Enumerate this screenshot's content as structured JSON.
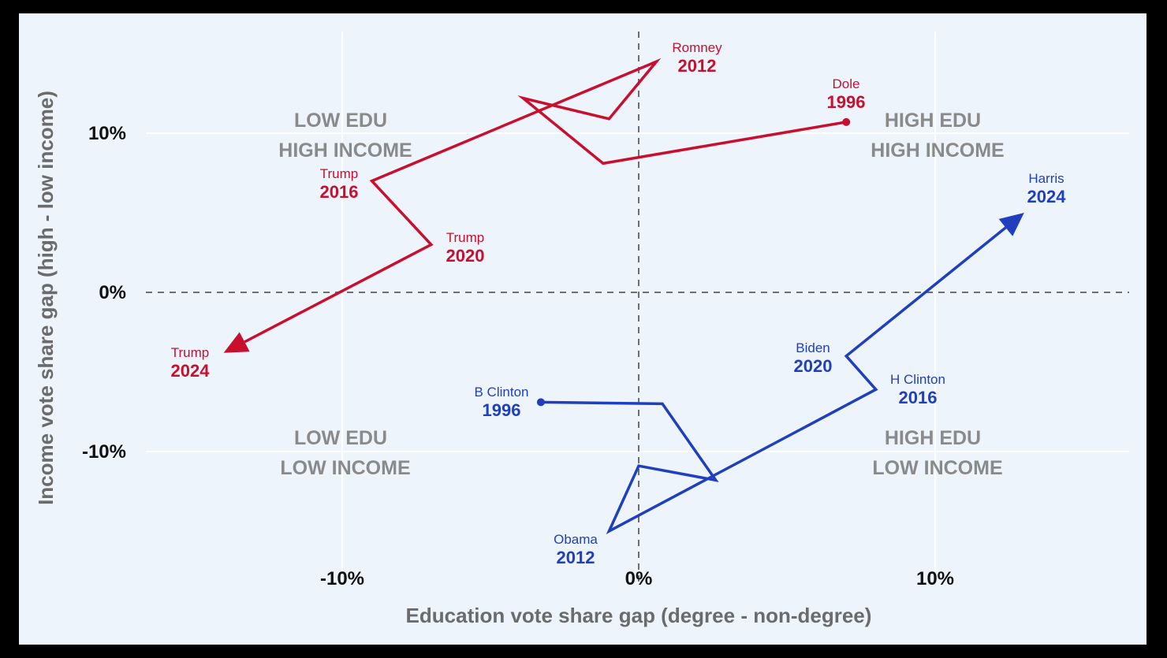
{
  "chart_data": {
    "type": "line",
    "title": "",
    "xlabel": "Education vote share gap (degree - non-degree)",
    "ylabel": "Income vote share gap (high - low income)",
    "xlim": [
      -17,
      17
    ],
    "ylim": [
      -16,
      16
    ],
    "x_ticks": [
      {
        "value": -10,
        "label": "-10%"
      },
      {
        "value": 0,
        "label": "0%"
      },
      {
        "value": 10,
        "label": "10%"
      }
    ],
    "y_ticks": [
      {
        "value": 10,
        "label": "10%"
      },
      {
        "value": 0,
        "label": "0%"
      },
      {
        "value": -10,
        "label": "-10%"
      }
    ],
    "grid": true,
    "zero_lines": "dashed",
    "quadrant_labels": [
      {
        "line1": "LOW EDU",
        "line2": "HIGH INCOME",
        "x": -10,
        "y": 10
      },
      {
        "line1": "HIGH EDU",
        "line2": "HIGH INCOME",
        "x": 10,
        "y": 10
      },
      {
        "line1": "LOW EDU",
        "line2": "LOW INCOME",
        "x": -10,
        "y": -10
      },
      {
        "line1": "HIGH EDU",
        "line2": "LOW INCOME",
        "x": 10,
        "y": -10
      }
    ],
    "series": [
      {
        "color": "#c8102e",
        "points": [
          {
            "x": 7.0,
            "y": 10.7,
            "candidate": "Dole",
            "year": "1996"
          },
          {
            "x": -1.2,
            "y": 8.1,
            "candidate": "",
            "year": ""
          },
          {
            "x": -3.9,
            "y": 12.2,
            "candidate": "",
            "year": ""
          },
          {
            "x": -1.0,
            "y": 10.9,
            "candidate": "",
            "year": ""
          },
          {
            "x": 0.6,
            "y": 14.5,
            "candidate": "Romney",
            "year": "2012"
          },
          {
            "x": -9.0,
            "y": 7.0,
            "candidate": "Trump",
            "year": "2016"
          },
          {
            "x": -7.0,
            "y": 3.0,
            "candidate": "Trump",
            "year": "2020"
          },
          {
            "x": -14.0,
            "y": -3.8,
            "candidate": "Trump",
            "year": "2024"
          }
        ]
      },
      {
        "color": "#1f3fbf",
        "points": [
          {
            "x": -3.3,
            "y": -6.9,
            "candidate": "B Clinton",
            "year": "1996"
          },
          {
            "x": 0.8,
            "y": -7.0,
            "candidate": "",
            "year": ""
          },
          {
            "x": 2.6,
            "y": -11.8,
            "candidate": "",
            "year": ""
          },
          {
            "x": 0.0,
            "y": -10.9,
            "candidate": "",
            "year": ""
          },
          {
            "x": -1.0,
            "y": -15.0,
            "candidate": "Obama",
            "year": "2012"
          },
          {
            "x": 8.0,
            "y": -6.1,
            "candidate": "H Clinton",
            "year": "2016"
          },
          {
            "x": 7.0,
            "y": -4.0,
            "candidate": "Biden",
            "year": "2020"
          },
          {
            "x": 13.0,
            "y": 5.0,
            "candidate": "Harris",
            "year": "2024"
          }
        ]
      }
    ]
  }
}
